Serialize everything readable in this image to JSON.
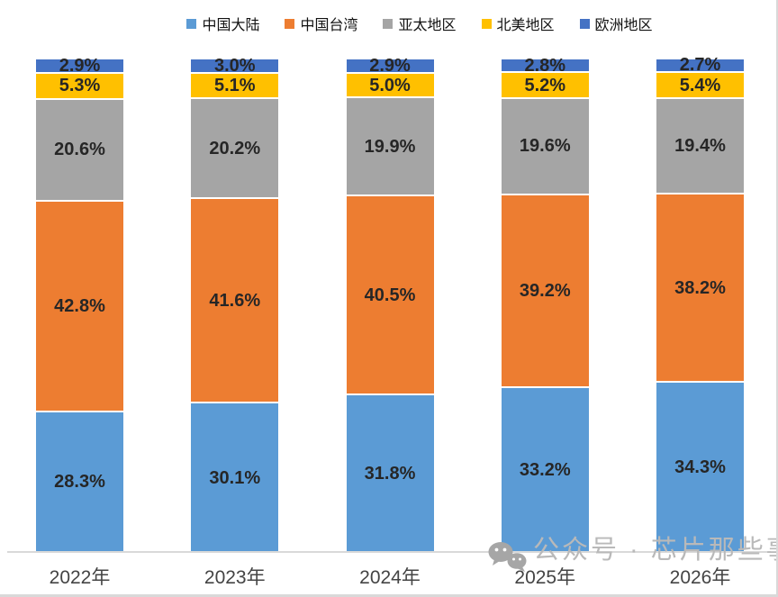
{
  "chart_data": {
    "type": "bar",
    "stacked": true,
    "percent_stacked": true,
    "unit": "%",
    "title": "",
    "xlabel": "",
    "ylabel": "",
    "ylim": [
      0,
      100
    ],
    "grid": false,
    "legend_position": "top",
    "categories": [
      "2022年",
      "2023年",
      "2024年",
      "2025年",
      "2026年"
    ],
    "series": [
      {
        "name": "中国大陆",
        "color": "#5B9BD5",
        "values": [
          28.3,
          30.1,
          31.8,
          33.2,
          34.3
        ]
      },
      {
        "name": "中国台湾",
        "color": "#ED7D31",
        "values": [
          42.8,
          41.6,
          40.5,
          39.2,
          38.2
        ]
      },
      {
        "name": "亚太地区",
        "color": "#A5A5A5",
        "values": [
          20.6,
          20.2,
          19.9,
          19.6,
          19.4
        ]
      },
      {
        "name": "北美地区",
        "color": "#FFC000",
        "values": [
          5.3,
          5.1,
          5.0,
          5.2,
          5.4
        ]
      },
      {
        "name": "欧洲地区",
        "color": "#4472C4",
        "values": [
          2.9,
          3.0,
          2.9,
          2.8,
          2.7
        ]
      }
    ]
  },
  "watermark": {
    "icon": "wechat-icon",
    "text": "公众号 · 芯片那些事儿",
    "color": "#B9B9B9"
  },
  "style": {
    "axis_line_color": "#D9D9D9",
    "value_label_color": "#262626",
    "x_label_color": "#444444",
    "segment_gap_color": "#FFFFFF"
  }
}
